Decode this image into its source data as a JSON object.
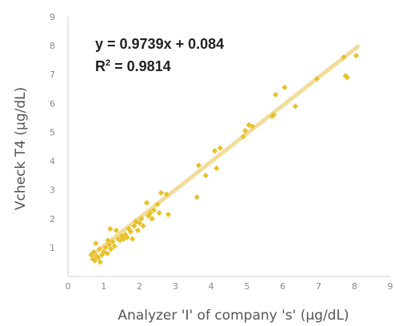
{
  "chart_data": {
    "type": "scatter",
    "xlabel": "Analyzer 'I' of company 's' (µg/dL)",
    "ylabel": "Vcheck T4 (µg/dL)",
    "xlim": [
      0,
      9
    ],
    "ylim": [
      0,
      9
    ],
    "x_ticks": [
      "0",
      "1",
      "2",
      "3",
      "4",
      "5",
      "6",
      "7",
      "8",
      "9"
    ],
    "y_ticks": [
      "1",
      "2",
      "3",
      "4",
      "5",
      "6",
      "7",
      "8",
      "9"
    ],
    "grid": false,
    "legend": "none",
    "equation": "y = 0.9739x + 0.084",
    "r2_prefix": "R",
    "r2_sup": "2",
    "r2_value": " = 0.9814",
    "trendline": {
      "slope": 0.9739,
      "intercept": 0.084,
      "x_start": 0.65,
      "x_end": 8.1
    },
    "colors": {
      "points": "#e8c12c",
      "trendline": "#f2dc9b",
      "axis": "#d0d0d0"
    },
    "points": [
      [
        0.65,
        0.75
      ],
      [
        0.7,
        0.6
      ],
      [
        0.72,
        0.85
      ],
      [
        0.75,
        0.55
      ],
      [
        0.78,
        1.15
      ],
      [
        0.8,
        0.7
      ],
      [
        0.85,
        0.65
      ],
      [
        0.88,
        0.95
      ],
      [
        0.9,
        0.5
      ],
      [
        0.95,
        0.75
      ],
      [
        1.0,
        0.85
      ],
      [
        1.05,
        1.0
      ],
      [
        1.1,
        0.8
      ],
      [
        1.12,
        1.25
      ],
      [
        1.15,
        1.1
      ],
      [
        1.18,
        1.65
      ],
      [
        1.2,
        0.95
      ],
      [
        1.25,
        1.2
      ],
      [
        1.3,
        1.05
      ],
      [
        1.35,
        1.6
      ],
      [
        1.4,
        1.3
      ],
      [
        1.45,
        1.25
      ],
      [
        1.5,
        1.4
      ],
      [
        1.55,
        1.3
      ],
      [
        1.6,
        1.45
      ],
      [
        1.65,
        1.35
      ],
      [
        1.7,
        1.65
      ],
      [
        1.75,
        1.55
      ],
      [
        1.8,
        1.3
      ],
      [
        1.85,
        1.75
      ],
      [
        1.9,
        1.9
      ],
      [
        1.95,
        1.6
      ],
      [
        2.0,
        1.85
      ],
      [
        2.05,
        2.0
      ],
      [
        2.1,
        1.75
      ],
      [
        2.2,
        2.55
      ],
      [
        2.25,
        2.1
      ],
      [
        2.3,
        2.2
      ],
      [
        2.35,
        2.0
      ],
      [
        2.4,
        2.3
      ],
      [
        2.5,
        2.5
      ],
      [
        2.55,
        2.2
      ],
      [
        2.6,
        2.9
      ],
      [
        2.75,
        2.85
      ],
      [
        2.8,
        2.15
      ],
      [
        3.6,
        2.75
      ],
      [
        3.65,
        3.85
      ],
      [
        3.85,
        3.5
      ],
      [
        4.1,
        4.35
      ],
      [
        4.15,
        3.75
      ],
      [
        4.25,
        4.45
      ],
      [
        4.9,
        4.85
      ],
      [
        4.95,
        5.05
      ],
      [
        5.05,
        5.25
      ],
      [
        5.15,
        5.2
      ],
      [
        5.7,
        5.55
      ],
      [
        5.75,
        5.6
      ],
      [
        5.8,
        6.3
      ],
      [
        6.05,
        6.55
      ],
      [
        6.35,
        5.9
      ],
      [
        6.95,
        6.85
      ],
      [
        7.7,
        7.6
      ],
      [
        7.75,
        6.95
      ],
      [
        7.8,
        6.9
      ],
      [
        8.05,
        7.65
      ]
    ]
  }
}
